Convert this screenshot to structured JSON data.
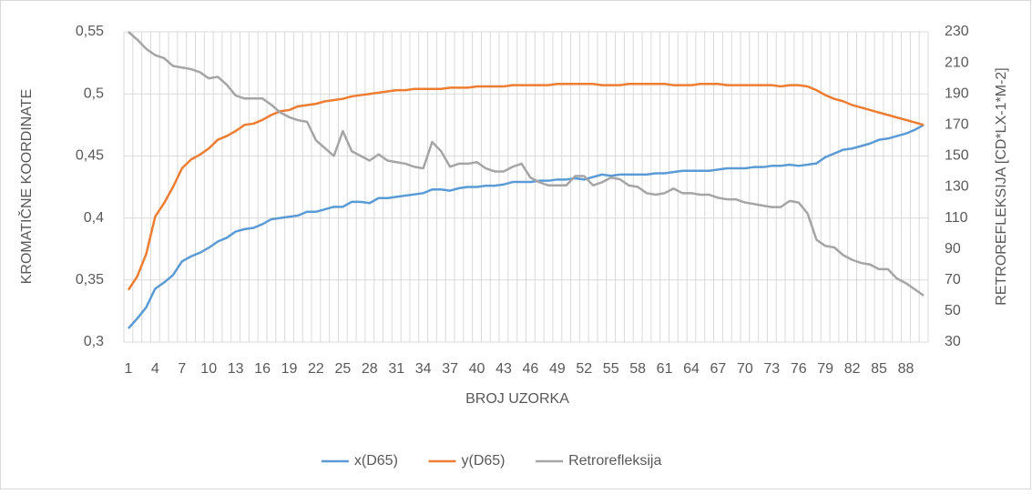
{
  "chart_data": {
    "type": "line",
    "x_label": "BROJ UZORKA",
    "y_label": "KROMATIČNE KOORDINATE",
    "y2_label": "RETROREFLEKSIJA [CD*LX-1*M-2]",
    "categories": [
      1,
      null,
      null,
      4,
      null,
      null,
      7,
      null,
      null,
      10,
      null,
      null,
      13,
      null,
      null,
      16,
      null,
      null,
      19,
      null,
      null,
      22,
      null,
      null,
      25,
      null,
      null,
      28,
      null,
      null,
      31,
      null,
      null,
      34,
      null,
      null,
      37,
      null,
      null,
      40,
      null,
      null,
      43,
      null,
      null,
      46,
      null,
      null,
      49,
      null,
      null,
      52,
      null,
      null,
      55,
      null,
      null,
      58,
      null,
      null,
      61,
      null,
      null,
      64,
      null,
      null,
      67,
      null,
      null,
      70,
      null,
      null,
      73,
      null,
      null,
      76,
      null,
      null,
      79,
      null,
      null,
      82,
      null,
      null,
      85,
      null,
      null,
      88,
      null,
      null
    ],
    "series": [
      {
        "name": "x(D65)",
        "color": "#5b9bd5",
        "values": [
          0.311,
          0.319,
          0.328,
          0.343,
          0.348,
          0.354,
          0.365,
          0.369,
          0.372,
          0.376,
          0.381,
          0.384,
          0.389,
          0.391,
          0.392,
          0.395,
          0.399,
          0.4,
          0.401,
          0.402,
          0.405,
          0.405,
          0.407,
          0.409,
          0.409,
          0.413,
          0.413,
          0.412,
          0.416,
          0.416,
          0.417,
          0.418,
          0.419,
          0.42,
          0.423,
          0.423,
          0.422,
          0.424,
          0.425,
          0.425,
          0.426,
          0.426,
          0.427,
          0.429,
          0.429,
          0.429,
          0.43,
          0.43,
          0.431,
          0.431,
          0.432,
          0.431,
          0.433,
          0.435,
          0.434,
          0.435,
          0.435,
          0.435,
          0.435,
          0.436,
          0.436,
          0.437,
          0.438,
          0.438,
          0.438,
          0.438,
          0.439,
          0.44,
          0.44,
          0.44,
          0.441,
          0.441,
          0.442,
          0.442,
          0.443,
          0.442,
          0.443,
          0.444,
          0.449,
          0.452,
          0.455,
          0.456,
          0.458,
          0.46,
          0.463,
          0.464,
          0.466,
          0.468,
          0.471,
          0.475
        ]
      },
      {
        "name": "y(D65)",
        "color": "#ed7d31",
        "values": [
          0.342,
          0.353,
          0.371,
          0.401,
          0.412,
          0.425,
          0.44,
          0.447,
          0.451,
          0.456,
          0.463,
          0.466,
          0.47,
          0.475,
          0.476,
          0.479,
          0.483,
          0.486,
          0.487,
          0.49,
          0.491,
          0.492,
          0.494,
          0.495,
          0.496,
          0.498,
          0.499,
          0.5,
          0.501,
          0.502,
          0.503,
          0.503,
          0.504,
          0.504,
          0.504,
          0.504,
          0.505,
          0.505,
          0.505,
          0.506,
          0.506,
          0.506,
          0.506,
          0.507,
          0.507,
          0.507,
          0.507,
          0.507,
          0.508,
          0.508,
          0.508,
          0.508,
          0.508,
          0.507,
          0.507,
          0.507,
          0.508,
          0.508,
          0.508,
          0.508,
          0.508,
          0.507,
          0.507,
          0.507,
          0.508,
          0.508,
          0.508,
          0.507,
          0.507,
          0.507,
          0.507,
          0.507,
          0.507,
          0.506,
          0.507,
          0.507,
          0.506,
          0.503,
          0.499,
          0.496,
          0.494,
          0.491,
          0.489,
          0.487,
          0.485,
          0.483,
          0.481,
          0.479,
          0.477,
          0.475
        ]
      },
      {
        "name": "Retrorefleksija",
        "color": "#a5a5a5",
        "axis": "y2",
        "values": [
          230,
          225,
          219,
          215,
          213,
          208,
          207,
          206,
          204,
          200,
          201,
          196,
          189,
          187,
          187,
          187,
          183,
          178,
          175,
          173,
          172,
          160,
          155,
          150,
          166,
          153,
          150,
          147,
          151,
          147,
          146,
          145,
          143,
          142,
          159,
          153,
          143,
          145,
          145,
          146,
          142,
          140,
          140,
          143,
          145,
          136,
          133,
          131,
          131,
          131,
          137,
          137,
          131,
          133,
          136,
          135,
          131,
          130,
          126,
          125,
          126,
          129,
          126,
          126,
          125,
          125,
          123,
          122,
          122,
          120,
          119,
          118,
          117,
          117,
          121,
          120,
          113,
          96,
          92,
          91,
          86,
          83,
          81,
          80,
          77,
          77,
          71,
          68,
          64,
          60
        ]
      }
    ],
    "ylim": [
      0.3,
      0.55
    ],
    "yticks": [
      {
        "value": 0.3,
        "label": "0,3"
      },
      {
        "value": 0.35,
        "label": "0,35"
      },
      {
        "value": 0.4,
        "label": "0,4"
      },
      {
        "value": 0.45,
        "label": "0,45"
      },
      {
        "value": 0.5,
        "label": "0,5"
      },
      {
        "value": 0.55,
        "label": "0,55"
      }
    ],
    "y2lim": [
      30,
      230
    ],
    "y2ticks": [
      30,
      50,
      70,
      90,
      110,
      130,
      150,
      170,
      190,
      210,
      230
    ],
    "grid": true,
    "legend": "bottom"
  }
}
